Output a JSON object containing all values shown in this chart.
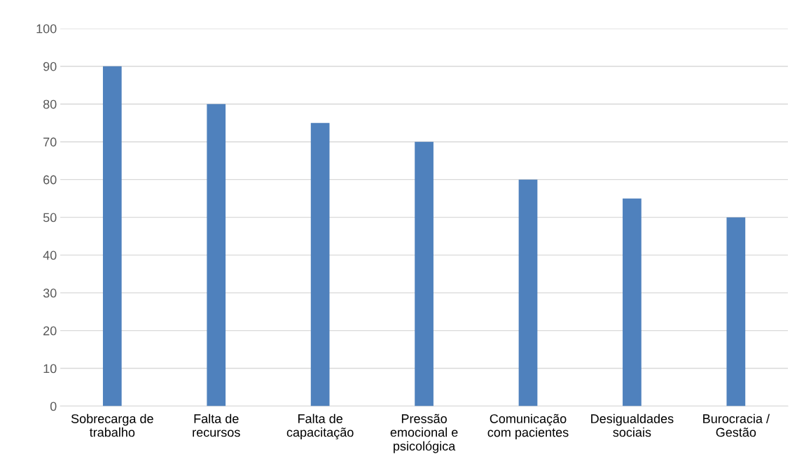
{
  "chart_data": {
    "type": "bar",
    "categories": [
      "Sobrecarga de\ntrabalho",
      "Falta de\nrecursos",
      "Falta de\ncapacitação",
      "Pressão\nemocional e\npsicológica",
      "Comunicação\ncom pacientes",
      "Desigualdades\nsociais",
      "Burocracia /\nGestão"
    ],
    "values": [
      90,
      80,
      75,
      70,
      60,
      55,
      50
    ],
    "color": "#4f81bd",
    "ylim": [
      0,
      100
    ],
    "yticks": [
      0,
      10,
      20,
      30,
      40,
      50,
      60,
      70,
      80,
      90,
      100
    ],
    "grid": "y"
  }
}
